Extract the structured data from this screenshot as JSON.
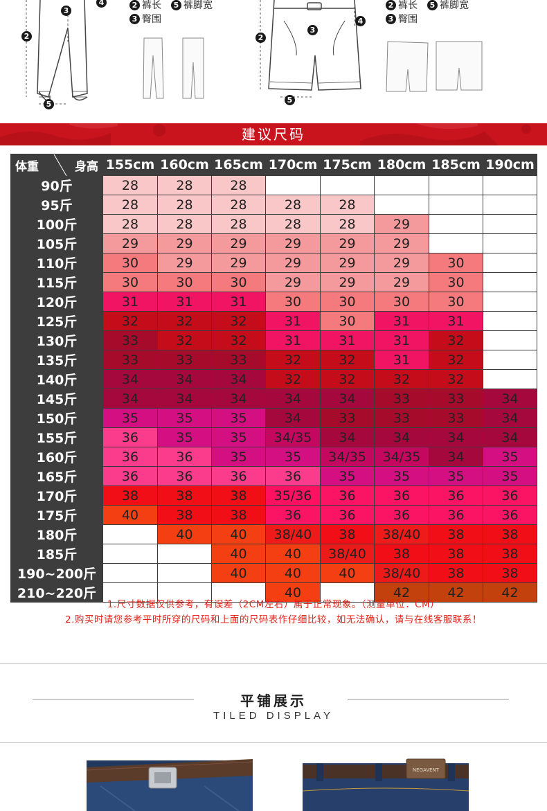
{
  "diagram": {
    "left": {
      "legend_rows": [
        [
          {
            "num": "2",
            "text": "裤长"
          },
          {
            "num": "5",
            "text": "裤脚宽"
          }
        ],
        [
          {
            "num": "3",
            "text": "臀围"
          }
        ]
      ],
      "markers": [
        "3",
        "4",
        "2",
        "5"
      ]
    },
    "right": {
      "legend_rows": [
        [
          {
            "num": "2",
            "text": "裤长"
          },
          {
            "num": "5",
            "text": "裤脚宽"
          }
        ],
        [
          {
            "num": "3",
            "text": "臀围"
          }
        ]
      ],
      "markers": [
        "3",
        "4",
        "2",
        "5"
      ]
    }
  },
  "banner": {
    "title": "建议尺码"
  },
  "table": {
    "corner_weight": "体重",
    "corner_height": "身高",
    "heights": [
      "155cm",
      "160cm",
      "165cm",
      "170cm",
      "175cm",
      "180cm",
      "185cm",
      "190cm"
    ],
    "rows": [
      {
        "weight": "90斤",
        "cells": [
          "28",
          "28",
          "28",
          "",
          "",
          "",
          "",
          ""
        ]
      },
      {
        "weight": "95斤",
        "cells": [
          "28",
          "28",
          "28",
          "28",
          "28",
          "",
          "",
          ""
        ]
      },
      {
        "weight": "100斤",
        "cells": [
          "28",
          "28",
          "28",
          "28",
          "28",
          "29",
          "",
          ""
        ]
      },
      {
        "weight": "105斤",
        "cells": [
          "29",
          "29",
          "29",
          "29",
          "29",
          "29",
          "",
          ""
        ]
      },
      {
        "weight": "110斤",
        "cells": [
          "30",
          "29",
          "29",
          "29",
          "29",
          "29",
          "30",
          ""
        ]
      },
      {
        "weight": "115斤",
        "cells": [
          "30",
          "30",
          "30",
          "29",
          "29",
          "29",
          "30",
          ""
        ]
      },
      {
        "weight": "120斤",
        "cells": [
          "31",
          "31",
          "31",
          "30",
          "30",
          "30",
          "30",
          ""
        ]
      },
      {
        "weight": "125斤",
        "cells": [
          "32",
          "32",
          "32",
          "31",
          "30",
          "31",
          "31",
          ""
        ]
      },
      {
        "weight": "130斤",
        "cells": [
          "33",
          "32",
          "32",
          "31",
          "31",
          "31",
          "32",
          ""
        ]
      },
      {
        "weight": "135斤",
        "cells": [
          "33",
          "33",
          "33",
          "32",
          "32",
          "31",
          "32",
          ""
        ]
      },
      {
        "weight": "140斤",
        "cells": [
          "34",
          "34",
          "34",
          "32",
          "32",
          "32",
          "32",
          ""
        ]
      },
      {
        "weight": "145斤",
        "cells": [
          "34",
          "34",
          "34",
          "34",
          "34",
          "33",
          "33",
          "34"
        ]
      },
      {
        "weight": "150斤",
        "cells": [
          "35",
          "35",
          "35",
          "34",
          "33",
          "33",
          "33",
          "34"
        ]
      },
      {
        "weight": "155斤",
        "cells": [
          "36",
          "35",
          "35",
          "34/35",
          "34",
          "34",
          "34",
          "34"
        ]
      },
      {
        "weight": "160斤",
        "cells": [
          "36",
          "36",
          "35",
          "35",
          "34/35",
          "34/35",
          "34",
          "35"
        ]
      },
      {
        "weight": "165斤",
        "cells": [
          "36",
          "36",
          "36",
          "36",
          "35",
          "35",
          "35",
          "35"
        ]
      },
      {
        "weight": "170斤",
        "cells": [
          "38",
          "38",
          "38",
          "35/36",
          "36",
          "36",
          "36",
          "36"
        ]
      },
      {
        "weight": "175斤",
        "cells": [
          "40",
          "38",
          "38",
          "36",
          "36",
          "36",
          "36",
          "36"
        ]
      },
      {
        "weight": "180斤",
        "cells": [
          "",
          "40",
          "40",
          "38/40",
          "38",
          "38/40",
          "38",
          "38"
        ]
      },
      {
        "weight": "185斤",
        "cells": [
          "",
          "",
          "40",
          "40",
          "38/40",
          "38",
          "38",
          "38"
        ]
      },
      {
        "weight": "190~200斤",
        "cells": [
          "",
          "",
          "40",
          "40",
          "40",
          "38/40",
          "38",
          "38"
        ]
      },
      {
        "weight": "210~220斤",
        "cells": [
          "",
          "",
          "",
          "40",
          "",
          "42",
          "42",
          "42"
        ]
      }
    ],
    "colors": {
      "28": "#f9c7c8",
      "29": "#f59a9c",
      "30": "#f47a7d",
      "31": "#f01463",
      "32": "#c50c1b",
      "33": "#a70b2b",
      "34": "#a4083d",
      "34/35": "#c4085f",
      "35": "#d40f82",
      "36": "#fb3b8c",
      "35/36": "#ff1161",
      "38": "#f20e16",
      "38/40": "#ec1a19",
      "40": "#f33f11",
      "42": "#c2410c",
      "empty": "#ffffff"
    },
    "cell_overrides": {
      "150-34": "#a4083d",
      "150-33": "#a70b2b",
      "145-34": "#a4083d",
      "145-33": "#a70b2b",
      "155-34/35": "#c4085f",
      "155-34": "#a4083d",
      "160-34/35": "#c4085f",
      "160-34": "#a4083d",
      "160-35": "#d40f82",
      "160-36": "#fb3b8c",
      "165-36": "#fb3b8c",
      "165-35": "#d40f82",
      "170-38": "#f20e16",
      "170-35/36": "#ff1161",
      "170-36": "#fb1463",
      "175-40": "#f33f11",
      "175-38": "#f20e16",
      "175-36": "#fb1463",
      "180-40": "#f33f11",
      "180-38/40": "#ef1a1a",
      "180-38": "#f20e16"
    }
  },
  "notes": [
    "1.尺寸数据仅供参考，有误差（2CM左右）属于正常现象。（测量单位：CM）",
    "2.购买时请您参考平时所穿的尺码和上面的尺码表作仔细比较，如无法确认，请与在线客服联系！"
  ],
  "tiled": {
    "title": "平铺展示",
    "subtitle": "TILED DISPLAY",
    "label_text": "NEGAVENT"
  }
}
